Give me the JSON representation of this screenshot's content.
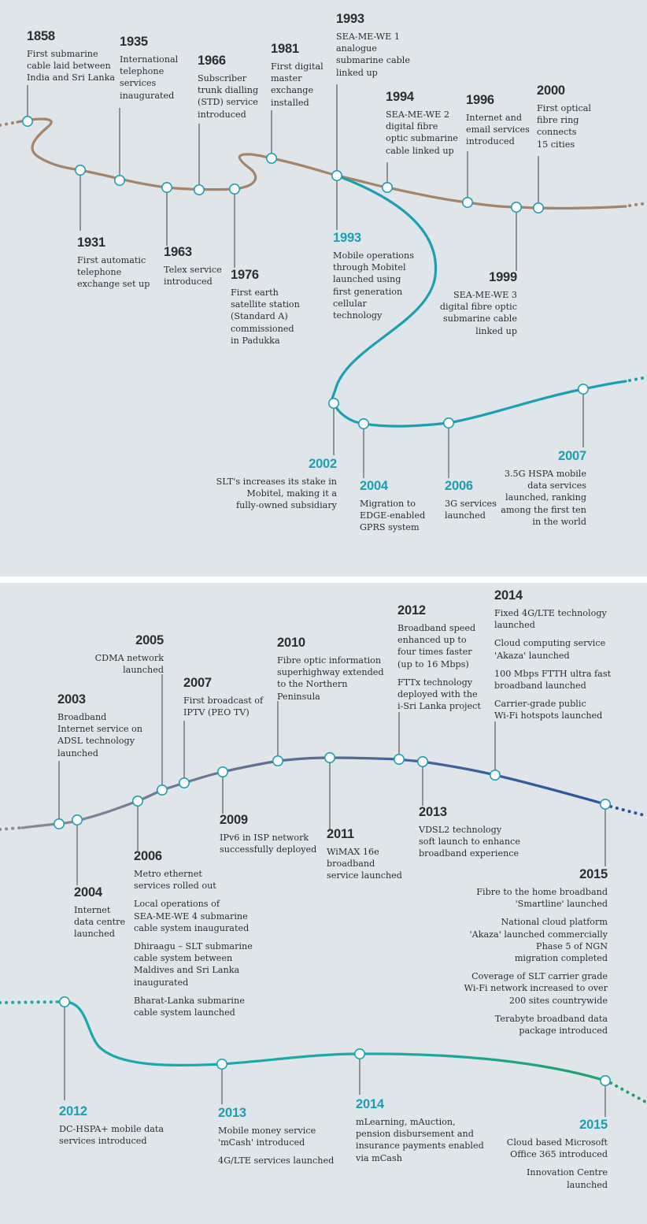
{
  "colors": {
    "panel_bg": "#dfe5e8",
    "fixed_line": "#a4856b",
    "mobile_line": "#1ba0b3",
    "broadband_line": "#5b6e94",
    "broadband_line_end": "#2457a3",
    "mobile2_line": "#1ba8a8",
    "mobile2_line_end": "#22a06b",
    "year_dark": "#2a2f33",
    "year_teal": "#1ba0b3"
  },
  "panel1": {
    "fixed": [
      {
        "year": "1858",
        "texts": [
          "First submarine\ncable laid between\nIndia and Sri Lanka"
        ]
      },
      {
        "year": "1935",
        "texts": [
          "International\ntelephone\nservices\ninaugurated"
        ]
      },
      {
        "year": "1966",
        "texts": [
          "Subscriber\ntrunk dialling\n(STD) service\nintroduced"
        ]
      },
      {
        "year": "1981",
        "texts": [
          "First digital\nmaster\nexchange\ninstalled"
        ]
      },
      {
        "year": "1993",
        "texts": [
          "SEA-ME-WE 1\nanalogue\nsubmarine cable\nlinked up"
        ]
      },
      {
        "year": "1994",
        "texts": [
          "SEA-ME-WE 2\ndigital fibre\noptic submarine\ncable linked up"
        ]
      },
      {
        "year": "1996",
        "texts": [
          "Internet and\nemail services\nintroduced"
        ]
      },
      {
        "year": "2000",
        "texts": [
          "First optical\nfibre ring\nconnects\n15 cities"
        ]
      },
      {
        "year": "1931",
        "texts": [
          "First automatic\ntelephone\nexchange set up"
        ]
      },
      {
        "year": "1963",
        "texts": [
          "Telex service\nintroduced"
        ]
      },
      {
        "year": "1976",
        "texts": [
          "First earth\nsatellite station\n(Standard A)\ncommissioned\nin Padukka"
        ]
      },
      {
        "year": "1999",
        "texts": [
          "SEA-ME-WE 3\ndigital fibre optic\nsubmarine cable\nlinked up"
        ]
      }
    ],
    "mobile": [
      {
        "year": "1993",
        "texts": [
          "Mobile operations\nthrough Mobitel\nlaunched using\nfirst generation\ncellular\ntechnology"
        ]
      },
      {
        "year": "2002",
        "texts": [
          "SLT's increases its stake in\nMobitel, making it a\nfully-owned subsidiary"
        ]
      },
      {
        "year": "2004",
        "texts": [
          "Migration to\nEDGE-enabled\nGPRS system"
        ]
      },
      {
        "year": "2006",
        "texts": [
          "3G services\nlaunched"
        ]
      },
      {
        "year": "2007",
        "texts": [
          "3.5G HSPA mobile\ndata services\nlaunched, ranking\namong the first ten\nin the world"
        ]
      }
    ]
  },
  "panel2": {
    "broadband": [
      {
        "year": "2003",
        "texts": [
          "Broadband\nInternet service on\nADSL technology\nlaunched"
        ]
      },
      {
        "year": "2005",
        "texts": [
          "CDMA network\nlaunched"
        ]
      },
      {
        "year": "2007",
        "texts": [
          "First broadcast of\nIPTV (PEO TV)"
        ]
      },
      {
        "year": "2010",
        "texts": [
          "Fibre optic information\nsuperhighway extended\nto the Northern\nPeninsula"
        ]
      },
      {
        "year": "2012",
        "texts": [
          "Broadband speed\nenhanced up to\nfour times faster\n(up to 16 Mbps)",
          "FTTx technology\ndeployed with the\ni-Sri Lanka project"
        ]
      },
      {
        "year": "2014",
        "texts": [
          "Fixed 4G/LTE technology\nlaunched",
          "Cloud computing service\n'Akaza' launched",
          "100 Mbps FTTH ultra fast\nbroadband launched",
          "Carrier-grade public\nWi-Fi hotspots launched"
        ]
      },
      {
        "year": "2004",
        "texts": [
          "Internet\ndata centre\nlaunched"
        ]
      },
      {
        "year": "2006",
        "texts": [
          "Metro ethernet\nservices rolled out",
          "Local operations of\nSEA-ME-WE 4 submarine\ncable system inaugurated",
          "Dhiraagu – SLT submarine\ncable system between\nMaldives and Sri Lanka\ninaugurated",
          "Bharat-Lanka submarine\ncable system launched"
        ]
      },
      {
        "year": "2009",
        "texts": [
          "IPv6 in ISP network\nsuccessfully deployed"
        ]
      },
      {
        "year": "2011",
        "texts": [
          "WiMAX 16e\nbroadband\nservice launched"
        ]
      },
      {
        "year": "2013",
        "texts": [
          "VDSL2 technology\nsoft launch to enhance\nbroadband experience"
        ]
      },
      {
        "year": "2015",
        "texts": [
          "Fibre to the home broadband\n'Smartline' launched",
          "National cloud platform\n'Akaza' launched commercially\nPhase 5 of NGN\nmigration completed",
          "Coverage of SLT carrier grade\nWi-Fi network increased to over\n200 sites countrywide",
          "Terabyte broadband data\npackage introduced"
        ]
      }
    ],
    "mobile": [
      {
        "year": "2012",
        "texts": [
          "DC-HSPA+ mobile data\nservices introduced"
        ]
      },
      {
        "year": "2013",
        "texts": [
          "Mobile money service\n'mCash' introduced",
          "4G/LTE services launched"
        ]
      },
      {
        "year": "2014",
        "texts": [
          "mLearning, mAuction,\npension disbursement and\ninsurance payments enabled\nvia mCash"
        ]
      },
      {
        "year": "2015",
        "texts": [
          "Cloud based Microsoft\nOffice 365 introduced",
          "Innovation Centre\nlaunched"
        ]
      }
    ]
  }
}
